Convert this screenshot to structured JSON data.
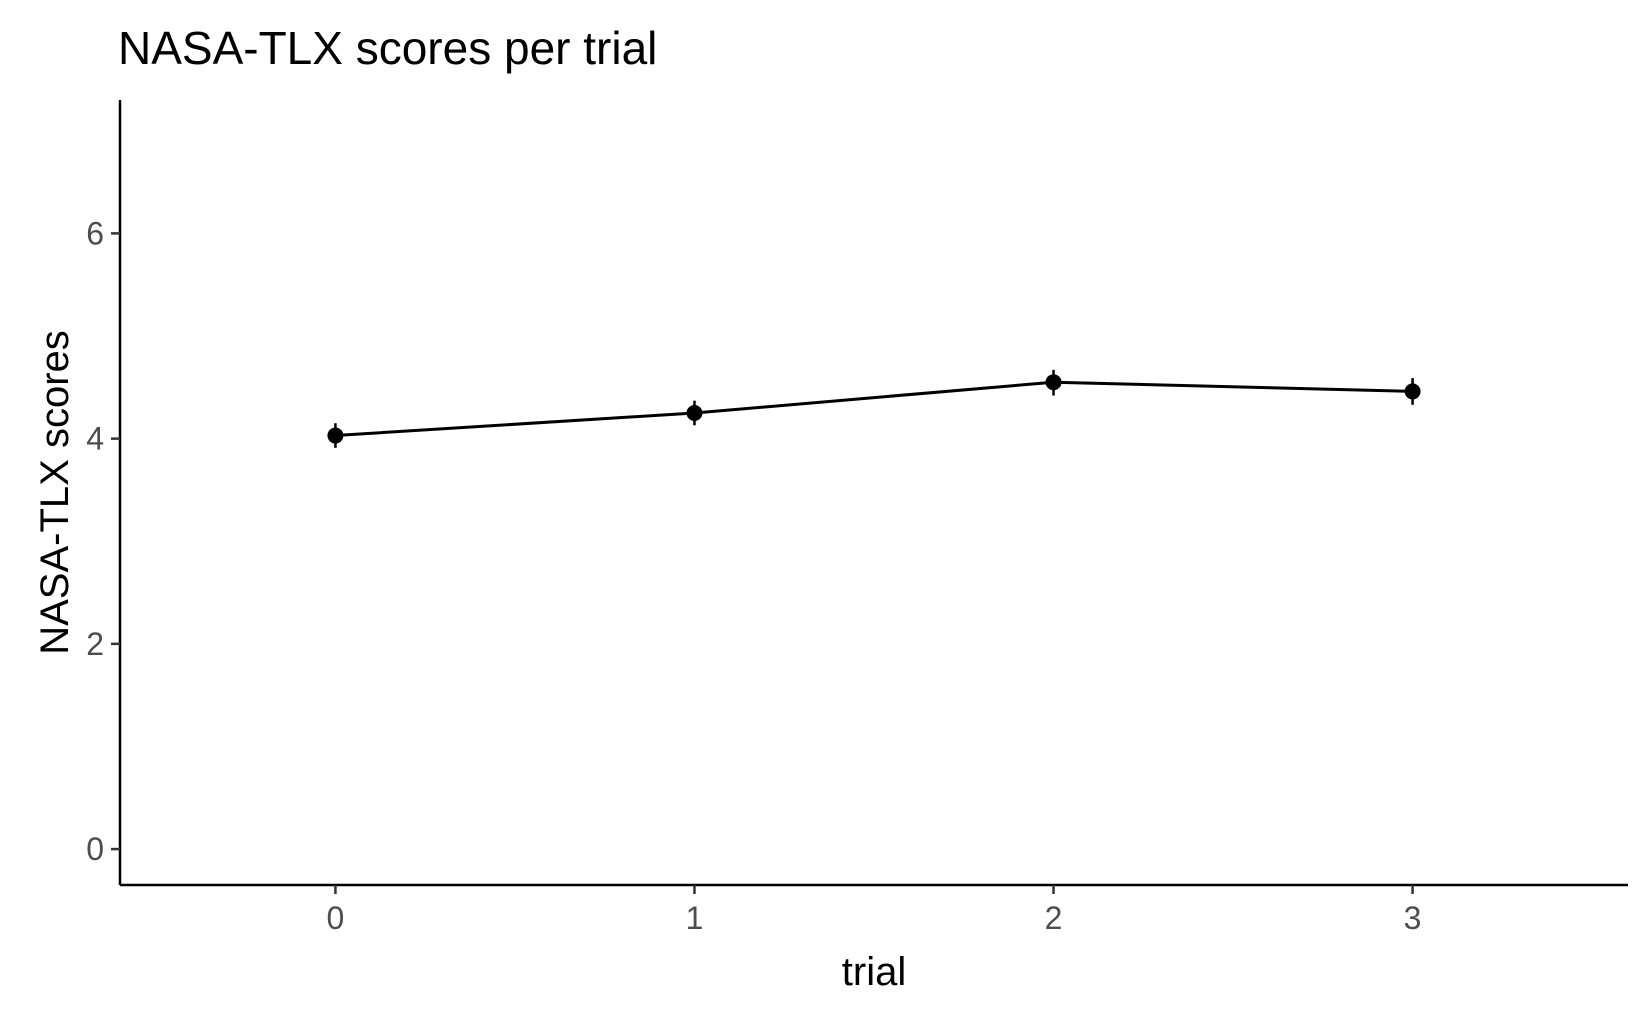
{
  "chart_data": {
    "type": "line",
    "title": "NASA-TLX scores per trial",
    "xlabel": "trial",
    "ylabel": "NASA-TLX scores",
    "x": [
      0,
      1,
      2,
      3
    ],
    "series": [
      {
        "values": [
          4.03,
          4.25,
          4.55,
          4.46
        ],
        "error_low": [
          3.91,
          4.13,
          4.42,
          4.33
        ],
        "error_high": [
          4.15,
          4.37,
          4.67,
          4.59
        ]
      }
    ],
    "xlim": [
      -0.6,
      3.6
    ],
    "ylim": [
      -0.35,
      7.3
    ],
    "xticks": [
      0,
      1,
      2,
      3
    ],
    "yticks": [
      0,
      2,
      4,
      6
    ],
    "grid": false,
    "legend": "none",
    "colors": {
      "series": "#000000",
      "tick_text": "#4d4d4d",
      "axis": "#000000"
    }
  }
}
